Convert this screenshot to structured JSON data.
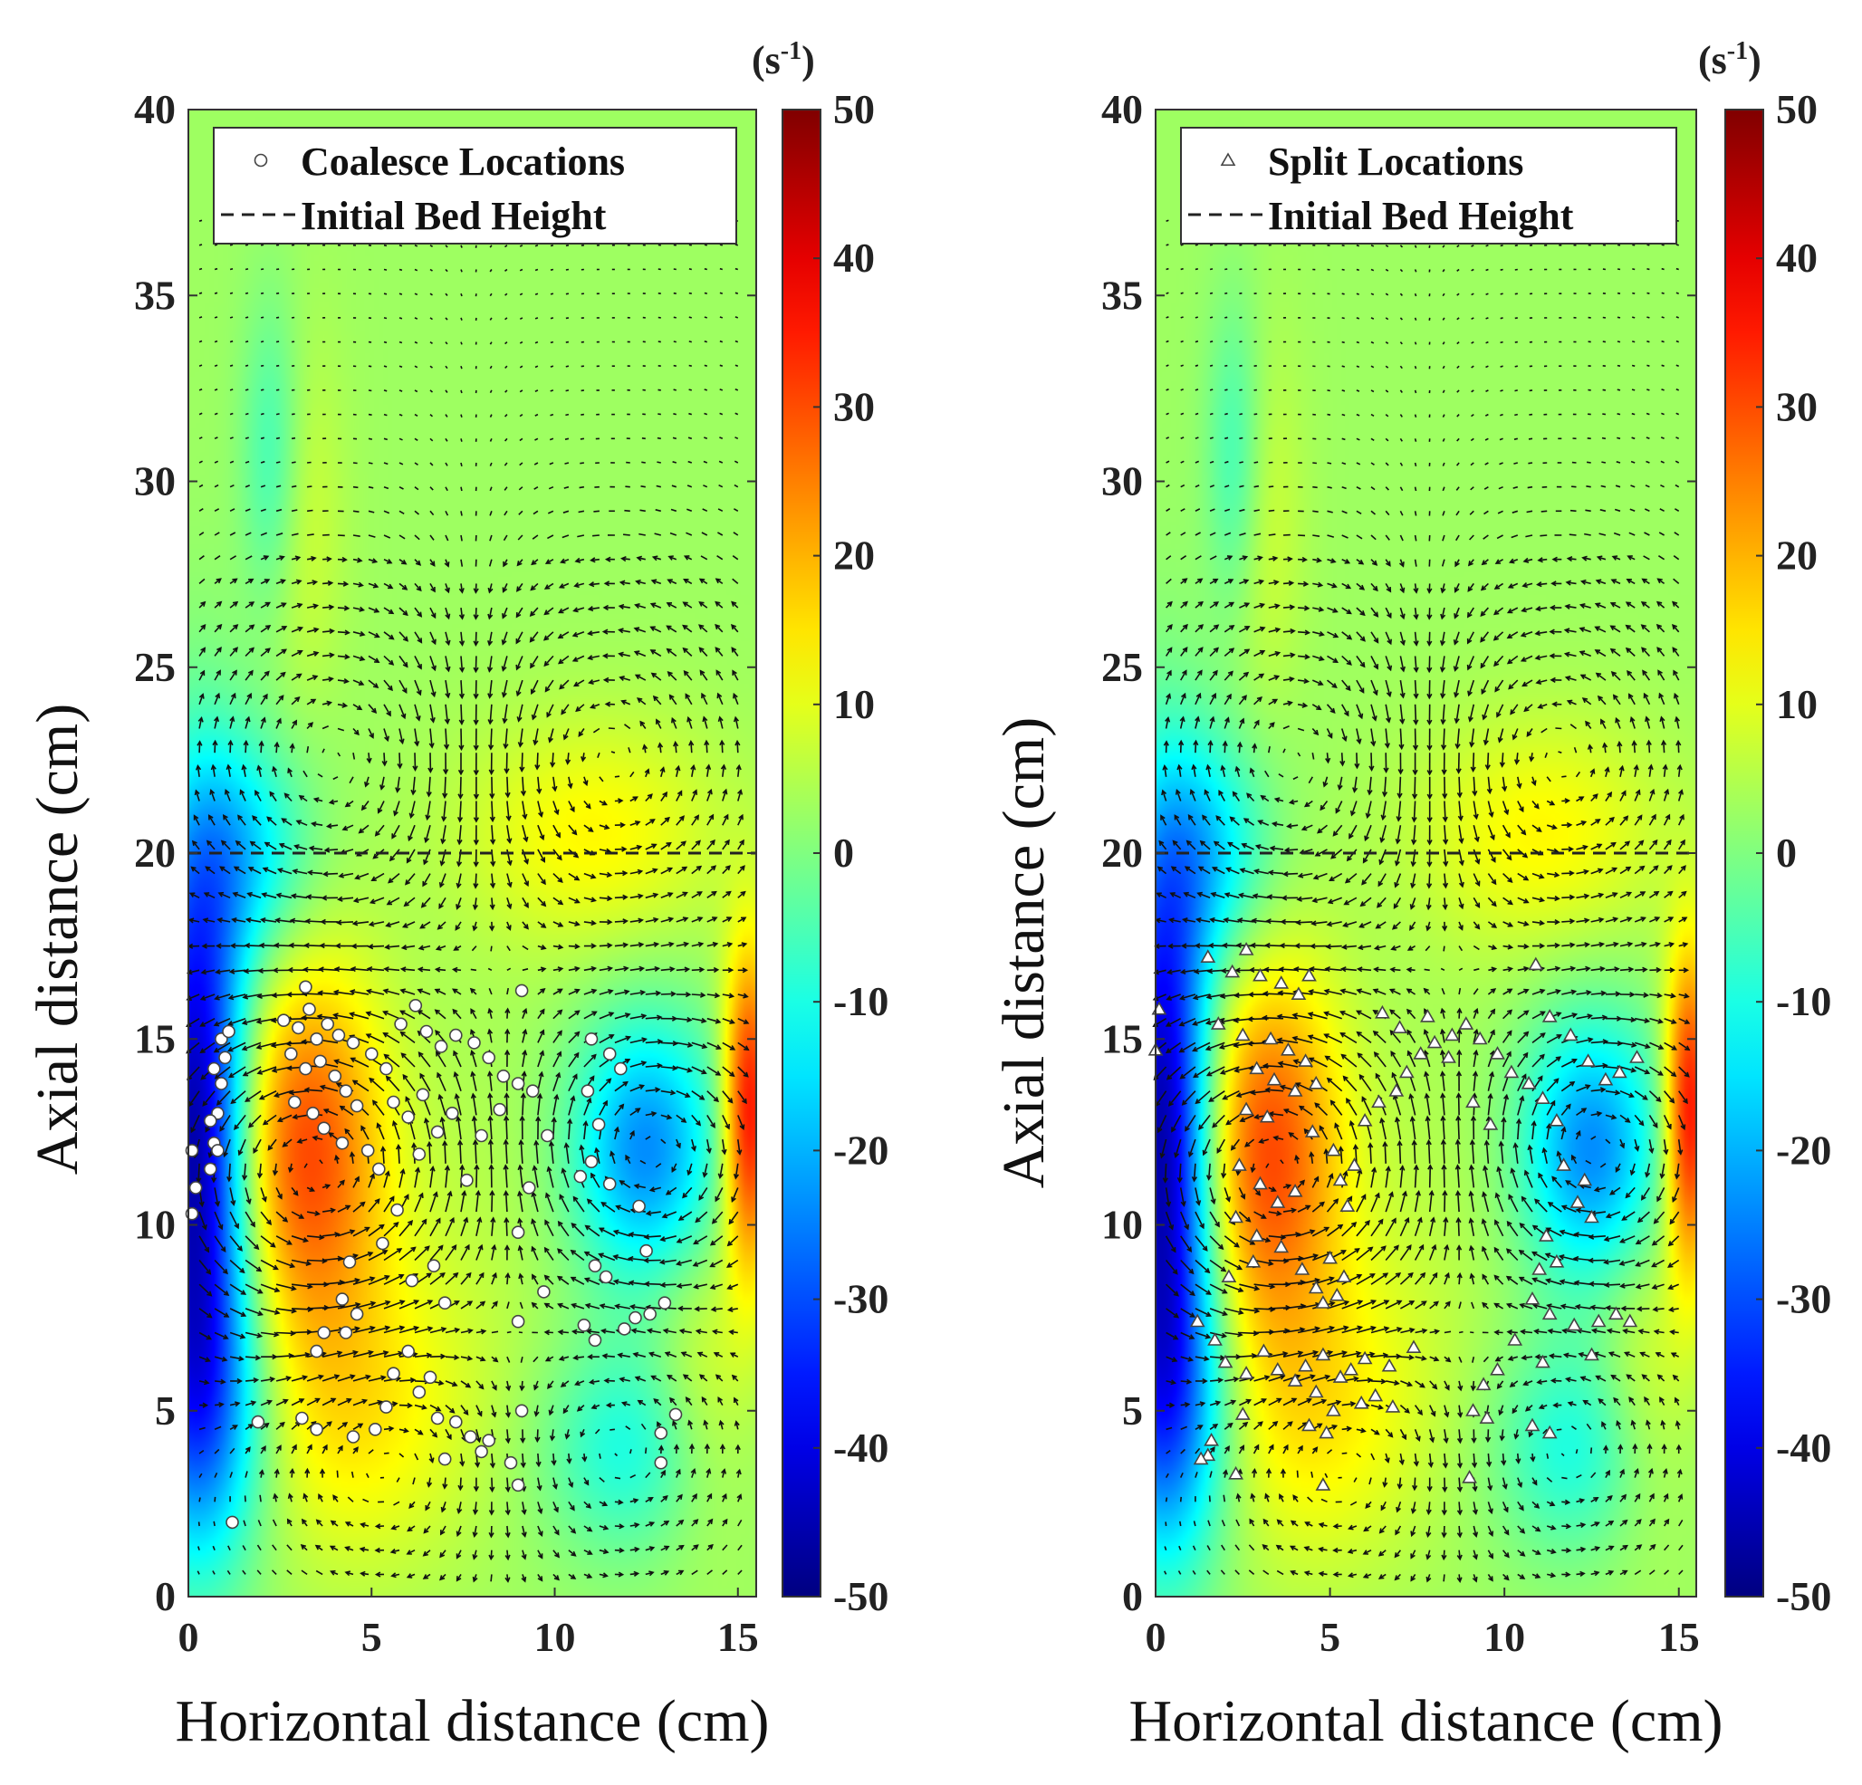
{
  "chart_data": [
    {
      "type": "heatmap",
      "overlay": "quiver",
      "marker": "circle",
      "xlabel": "Horizontal distance (cm)",
      "ylabel": "Axial distance (cm)",
      "xlim": [
        0,
        15.5
      ],
      "ylim": [
        0,
        40
      ],
      "x_ticks": [
        "0",
        "5",
        "10",
        "15"
      ],
      "y_ticks": [
        "0",
        "5",
        "10",
        "15",
        "20",
        "25",
        "30",
        "35",
        "40"
      ],
      "colorbar": {
        "unit_base": "(s",
        "unit_exp": "-1",
        "unit_close": ")",
        "range": [
          -50,
          50
        ],
        "ticks": [
          "50",
          "40",
          "30",
          "20",
          "10",
          "0",
          "-10",
          "-20",
          "-30",
          "-40",
          "-50"
        ]
      },
      "legend": {
        "placement": "top",
        "entries": [
          "Coalesce Locations",
          "Initial Bed Height"
        ]
      },
      "initial_bed_height": 20,
      "field": [
        {
          "x": 0.2,
          "y": 12.5,
          "value": -48,
          "sx": 1.0,
          "sy": 5.5
        },
        {
          "x": 0.4,
          "y": 5.0,
          "value": -20,
          "sx": 1.3,
          "sy": 3.0
        },
        {
          "x": 3.2,
          "y": 12.0,
          "value": 30,
          "sx": 1.5,
          "sy": 3.5
        },
        {
          "x": 4.5,
          "y": 5.0,
          "value": 14,
          "sx": 2.3,
          "sy": 3.0
        },
        {
          "x": 12.5,
          "y": 12.0,
          "value": -24,
          "sx": 1.4,
          "sy": 2.5
        },
        {
          "x": 12.0,
          "y": 4.0,
          "value": -10,
          "sx": 1.6,
          "sy": 2.0
        },
        {
          "x": 15.3,
          "y": 13.0,
          "value": 38,
          "sx": 0.5,
          "sy": 3.0
        },
        {
          "x": 14.0,
          "y": 6.0,
          "value": 10,
          "sx": 1.0,
          "sy": 3.0
        },
        {
          "x": 11.0,
          "y": 20.5,
          "value": 13,
          "sx": 2.5,
          "sy": 2.2
        },
        {
          "x": 1.5,
          "y": 20.0,
          "value": -14,
          "sx": 1.3,
          "sy": 2.2
        },
        {
          "x": 3.0,
          "y": 29.0,
          "value": 9,
          "sx": 0.8,
          "sy": 3.5
        },
        {
          "x": 2.3,
          "y": 30.5,
          "value": -8,
          "sx": 0.6,
          "sy": 3.0
        },
        {
          "x": 7.5,
          "y": 10.0,
          "value": 5,
          "sx": 2.0,
          "sy": 4.0
        }
      ],
      "vortices": [
        {
          "x": 3.5,
          "y": 11.5,
          "strength": 1,
          "radius": 4.5
        },
        {
          "x": 12.5,
          "y": 12.0,
          "strength": -1,
          "radius": 3.5
        },
        {
          "x": 4.5,
          "y": 22.5,
          "strength": -0.6,
          "radius": 4.5
        },
        {
          "x": 11.0,
          "y": 22.5,
          "strength": 0.6,
          "radius": 4.5
        },
        {
          "x": 5.5,
          "y": 4.0,
          "strength": -0.5,
          "radius": 3.5
        },
        {
          "x": 11.5,
          "y": 4.0,
          "strength": 0.5,
          "radius": 3.5
        }
      ],
      "points": [
        [
          0.1,
          12.0
        ],
        [
          0.2,
          11.0
        ],
        [
          0.1,
          10.3
        ],
        [
          0.6,
          11.5
        ],
        [
          0.7,
          12.2
        ],
        [
          0.8,
          13.0
        ],
        [
          0.9,
          13.8
        ],
        [
          0.7,
          14.2
        ],
        [
          1.0,
          14.5
        ],
        [
          0.9,
          15.0
        ],
        [
          0.6,
          12.8
        ],
        [
          1.1,
          15.2
        ],
        [
          0.8,
          12.0
        ],
        [
          2.6,
          15.5
        ],
        [
          3.0,
          15.3
        ],
        [
          3.3,
          15.8
        ],
        [
          3.5,
          15.0
        ],
        [
          3.8,
          15.4
        ],
        [
          4.1,
          15.1
        ],
        [
          4.5,
          14.9
        ],
        [
          2.8,
          14.6
        ],
        [
          3.2,
          14.2
        ],
        [
          3.6,
          14.4
        ],
        [
          4.0,
          14.0
        ],
        [
          4.3,
          13.6
        ],
        [
          2.9,
          13.3
        ],
        [
          3.4,
          13.0
        ],
        [
          4.6,
          13.2
        ],
        [
          3.7,
          12.6
        ],
        [
          4.2,
          12.2
        ],
        [
          5.0,
          14.6
        ],
        [
          5.4,
          14.2
        ],
        [
          5.8,
          15.4
        ],
        [
          6.2,
          15.9
        ],
        [
          6.5,
          15.2
        ],
        [
          6.9,
          14.8
        ],
        [
          7.3,
          15.1
        ],
        [
          7.8,
          14.9
        ],
        [
          8.2,
          14.5
        ],
        [
          8.6,
          14.0
        ],
        [
          9.0,
          13.8
        ],
        [
          9.4,
          13.6
        ],
        [
          9.1,
          16.3
        ],
        [
          3.2,
          16.4
        ],
        [
          5.6,
          13.3
        ],
        [
          6.0,
          12.9
        ],
        [
          6.4,
          13.5
        ],
        [
          6.8,
          12.5
        ],
        [
          7.2,
          13.0
        ],
        [
          7.6,
          11.2
        ],
        [
          8.0,
          12.4
        ],
        [
          8.5,
          13.1
        ],
        [
          9.3,
          11.0
        ],
        [
          9.8,
          12.4
        ],
        [
          5.2,
          11.5
        ],
        [
          6.3,
          11.9
        ],
        [
          4.9,
          12.0
        ],
        [
          5.7,
          10.4
        ],
        [
          4.4,
          9.0
        ],
        [
          4.2,
          8.0
        ],
        [
          4.6,
          7.6
        ],
        [
          3.7,
          7.1
        ],
        [
          3.5,
          6.6
        ],
        [
          4.3,
          7.1
        ],
        [
          5.3,
          9.5
        ],
        [
          6.1,
          8.5
        ],
        [
          6.7,
          8.9
        ],
        [
          7.0,
          7.9
        ],
        [
          9.0,
          9.8
        ],
        [
          9.7,
          8.2
        ],
        [
          9.0,
          7.4
        ],
        [
          3.1,
          4.8
        ],
        [
          3.5,
          4.5
        ],
        [
          4.5,
          4.3
        ],
        [
          5.1,
          4.5
        ],
        [
          5.4,
          5.1
        ],
        [
          5.6,
          6.0
        ],
        [
          6.0,
          6.6
        ],
        [
          6.3,
          5.5
        ],
        [
          6.6,
          5.9
        ],
        [
          6.8,
          4.8
        ],
        [
          7.3,
          4.7
        ],
        [
          7.7,
          4.3
        ],
        [
          8.0,
          3.9
        ],
        [
          8.2,
          4.2
        ],
        [
          8.8,
          3.6
        ],
        [
          9.0,
          3.0
        ],
        [
          9.1,
          5.0
        ],
        [
          7.0,
          3.7
        ],
        [
          1.9,
          4.7
        ],
        [
          1.2,
          2.0
        ],
        [
          11.0,
          15.0
        ],
        [
          11.5,
          14.6
        ],
        [
          11.8,
          14.2
        ],
        [
          10.9,
          13.6
        ],
        [
          11.2,
          12.7
        ],
        [
          11.0,
          11.7
        ],
        [
          10.7,
          11.3
        ],
        [
          11.5,
          11.1
        ],
        [
          12.3,
          10.5
        ],
        [
          12.5,
          9.3
        ],
        [
          11.1,
          8.9
        ],
        [
          11.4,
          8.6
        ],
        [
          10.8,
          7.3
        ],
        [
          11.1,
          6.9
        ],
        [
          12.2,
          7.5
        ],
        [
          12.6,
          7.6
        ],
        [
          13.0,
          7.9
        ],
        [
          12.9,
          4.4
        ],
        [
          13.3,
          4.9
        ],
        [
          12.9,
          3.6
        ],
        [
          11.9,
          7.2
        ]
      ]
    },
    {
      "type": "heatmap",
      "overlay": "quiver",
      "marker": "triangle",
      "xlabel": "Horizontal distance (cm)",
      "ylabel": "Axial distance (cm)",
      "xlim": [
        0,
        15.5
      ],
      "ylim": [
        0,
        40
      ],
      "x_ticks": [
        "0",
        "5",
        "10",
        "15"
      ],
      "y_ticks": [
        "0",
        "5",
        "10",
        "15",
        "20",
        "25",
        "30",
        "35",
        "40"
      ],
      "colorbar": {
        "unit_base": "(s",
        "unit_exp": "-1",
        "unit_close": ")",
        "range": [
          -50,
          50
        ],
        "ticks": [
          "50",
          "40",
          "30",
          "20",
          "10",
          "0",
          "-10",
          "-20",
          "-30",
          "-40",
          "-50"
        ]
      },
      "legend": {
        "placement": "top",
        "entries": [
          "Split Locations",
          "Initial Bed Height"
        ]
      },
      "initial_bed_height": 20,
      "field": [
        {
          "x": 0.2,
          "y": 12.5,
          "value": -48,
          "sx": 1.0,
          "sy": 5.5
        },
        {
          "x": 0.4,
          "y": 5.0,
          "value": -20,
          "sx": 1.3,
          "sy": 3.0
        },
        {
          "x": 3.2,
          "y": 12.0,
          "value": 30,
          "sx": 1.5,
          "sy": 3.5
        },
        {
          "x": 4.5,
          "y": 5.0,
          "value": 14,
          "sx": 2.3,
          "sy": 3.0
        },
        {
          "x": 12.5,
          "y": 12.0,
          "value": -24,
          "sx": 1.4,
          "sy": 2.5
        },
        {
          "x": 12.0,
          "y": 4.0,
          "value": -10,
          "sx": 1.6,
          "sy": 2.0
        },
        {
          "x": 15.3,
          "y": 13.0,
          "value": 38,
          "sx": 0.5,
          "sy": 3.0
        },
        {
          "x": 14.0,
          "y": 6.0,
          "value": 10,
          "sx": 1.0,
          "sy": 3.0
        },
        {
          "x": 11.0,
          "y": 20.5,
          "value": 13,
          "sx": 2.5,
          "sy": 2.2
        },
        {
          "x": 1.5,
          "y": 20.0,
          "value": -14,
          "sx": 1.3,
          "sy": 2.2
        },
        {
          "x": 3.0,
          "y": 29.0,
          "value": 9,
          "sx": 0.8,
          "sy": 3.5
        },
        {
          "x": 2.3,
          "y": 30.5,
          "value": -8,
          "sx": 0.6,
          "sy": 3.0
        },
        {
          "x": 7.5,
          "y": 10.0,
          "value": 5,
          "sx": 2.0,
          "sy": 4.0
        }
      ],
      "vortices": [
        {
          "x": 3.5,
          "y": 11.5,
          "strength": 1,
          "radius": 4.5
        },
        {
          "x": 12.5,
          "y": 12.0,
          "strength": -1,
          "radius": 3.5
        },
        {
          "x": 4.5,
          "y": 22.5,
          "strength": -0.6,
          "radius": 4.5
        },
        {
          "x": 11.0,
          "y": 22.5,
          "strength": 0.6,
          "radius": 4.5
        },
        {
          "x": 5.5,
          "y": 4.0,
          "strength": -0.5,
          "radius": 3.5
        },
        {
          "x": 11.5,
          "y": 4.0,
          "strength": 0.5,
          "radius": 3.5
        }
      ],
      "points": [
        [
          0.1,
          15.8
        ],
        [
          0.0,
          14.7
        ],
        [
          1.5,
          17.2
        ],
        [
          2.2,
          16.8
        ],
        [
          2.6,
          17.4
        ],
        [
          3.0,
          16.7
        ],
        [
          3.6,
          16.5
        ],
        [
          4.1,
          16.2
        ],
        [
          4.4,
          16.7
        ],
        [
          1.8,
          15.4
        ],
        [
          2.5,
          15.1
        ],
        [
          3.3,
          15.0
        ],
        [
          3.8,
          14.7
        ],
        [
          4.3,
          14.4
        ],
        [
          2.9,
          14.2
        ],
        [
          3.4,
          13.9
        ],
        [
          4.0,
          13.6
        ],
        [
          4.6,
          13.8
        ],
        [
          2.6,
          13.1
        ],
        [
          3.2,
          12.9
        ],
        [
          2.4,
          11.6
        ],
        [
          3.0,
          11.1
        ],
        [
          3.5,
          10.6
        ],
        [
          4.0,
          10.9
        ],
        [
          4.5,
          12.5
        ],
        [
          2.3,
          10.2
        ],
        [
          2.9,
          9.7
        ],
        [
          3.6,
          9.4
        ],
        [
          2.8,
          9.0
        ],
        [
          2.1,
          8.6
        ],
        [
          4.2,
          8.8
        ],
        [
          4.6,
          8.3
        ],
        [
          4.8,
          7.9
        ],
        [
          5.2,
          8.1
        ],
        [
          5.4,
          8.6
        ],
        [
          5.0,
          9.1
        ],
        [
          5.5,
          10.5
        ],
        [
          5.3,
          11.2
        ],
        [
          5.7,
          11.6
        ],
        [
          5.1,
          12.0
        ],
        [
          6.0,
          12.8
        ],
        [
          6.4,
          13.3
        ],
        [
          6.9,
          13.6
        ],
        [
          7.2,
          14.1
        ],
        [
          7.6,
          14.6
        ],
        [
          8.0,
          14.9
        ],
        [
          8.5,
          15.1
        ],
        [
          8.9,
          15.4
        ],
        [
          9.3,
          15.0
        ],
        [
          9.8,
          14.6
        ],
        [
          6.5,
          15.7
        ],
        [
          7.0,
          15.3
        ],
        [
          7.8,
          15.6
        ],
        [
          8.4,
          14.5
        ],
        [
          9.1,
          13.3
        ],
        [
          9.6,
          12.7
        ],
        [
          10.2,
          14.1
        ],
        [
          10.7,
          13.8
        ],
        [
          11.1,
          13.4
        ],
        [
          11.5,
          12.8
        ],
        [
          10.9,
          17.0
        ],
        [
          11.3,
          15.6
        ],
        [
          11.9,
          15.1
        ],
        [
          12.4,
          14.4
        ],
        [
          12.9,
          13.9
        ],
        [
          13.3,
          14.1
        ],
        [
          13.8,
          14.5
        ],
        [
          12.5,
          10.2
        ],
        [
          12.1,
          10.6
        ],
        [
          11.7,
          11.6
        ],
        [
          12.3,
          11.2
        ],
        [
          11.2,
          9.7
        ],
        [
          11.5,
          9.0
        ],
        [
          11.0,
          8.8
        ],
        [
          10.8,
          8.0
        ],
        [
          11.3,
          7.6
        ],
        [
          12.0,
          7.3
        ],
        [
          12.7,
          7.4
        ],
        [
          13.2,
          7.6
        ],
        [
          13.6,
          7.4
        ],
        [
          10.3,
          6.9
        ],
        [
          9.8,
          6.1
        ],
        [
          9.4,
          5.7
        ],
        [
          9.1,
          5.0
        ],
        [
          9.5,
          4.8
        ],
        [
          10.8,
          4.6
        ],
        [
          11.3,
          4.4
        ],
        [
          11.1,
          6.3
        ],
        [
          12.5,
          6.5
        ],
        [
          9.0,
          3.2
        ],
        [
          1.2,
          7.4
        ],
        [
          1.7,
          6.9
        ],
        [
          2.0,
          6.3
        ],
        [
          2.6,
          6.0
        ],
        [
          3.1,
          6.6
        ],
        [
          3.5,
          6.1
        ],
        [
          4.0,
          5.8
        ],
        [
          4.3,
          6.2
        ],
        [
          4.8,
          6.5
        ],
        [
          5.3,
          5.9
        ],
        [
          5.6,
          6.1
        ],
        [
          4.6,
          5.5
        ],
        [
          5.1,
          5.0
        ],
        [
          4.4,
          4.6
        ],
        [
          4.9,
          4.4
        ],
        [
          5.9,
          5.2
        ],
        [
          6.3,
          5.4
        ],
        [
          6.8,
          5.1
        ],
        [
          6.0,
          6.4
        ],
        [
          6.7,
          6.2
        ],
        [
          7.4,
          6.7
        ],
        [
          4.8,
          3.0
        ],
        [
          2.3,
          3.3
        ],
        [
          1.5,
          3.8
        ],
        [
          1.6,
          4.2
        ],
        [
          1.3,
          3.7
        ],
        [
          2.5,
          4.9
        ]
      ]
    }
  ]
}
